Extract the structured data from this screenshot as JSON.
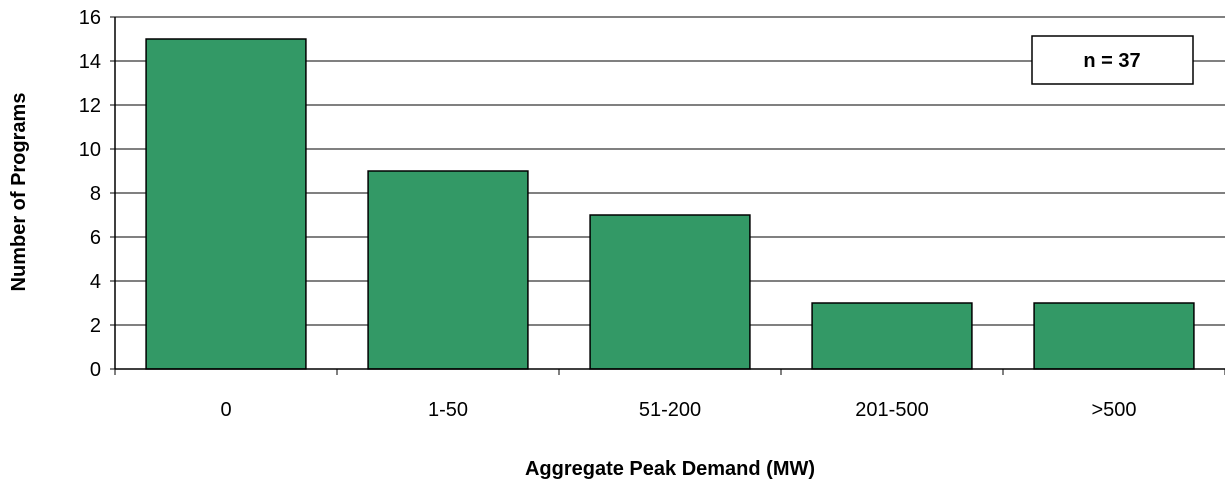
{
  "chart_data": {
    "type": "bar",
    "categories": [
      "0",
      "1-50",
      "51-200",
      "201-500",
      ">500"
    ],
    "values": [
      15,
      9,
      7,
      3,
      3
    ],
    "xlabel": "Aggregate Peak Demand (MW)",
    "ylabel": "Number of Programs",
    "ylim": [
      0,
      16
    ],
    "yticks": [
      "0",
      "2",
      "4",
      "6",
      "8",
      "10",
      "12",
      "14",
      "16"
    ],
    "grid": true,
    "bar_color": "#339966",
    "annotation": "n = 37"
  }
}
